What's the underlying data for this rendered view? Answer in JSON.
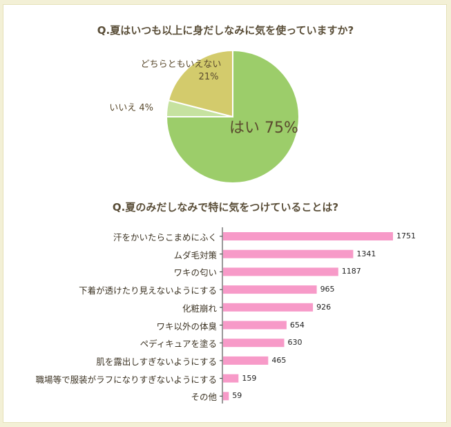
{
  "chart_data": [
    {
      "type": "pie",
      "title": "Q.夏はいつも以上に身だしなみに気を使っていますか?",
      "slices": [
        {
          "label": "はい",
          "pct_text": "75%",
          "value": 75,
          "color": "#9ccd6a"
        },
        {
          "label": "いいえ",
          "pct_text": "4%",
          "value": 4,
          "color": "#c6e2a0"
        },
        {
          "label": "どちらともいえない",
          "pct_text": "21%",
          "value": 21,
          "color": "#d3cb6c"
        }
      ]
    },
    {
      "type": "bar",
      "orientation": "horizontal",
      "title": "Q.夏のみだしなみで特に気をつけていることは?",
      "bar_color": "#f79ac8",
      "categories": [
        "汗をかいたらこまめにふく",
        "ムダ毛対策",
        "ワキの匂い",
        "下着が透けたり見えないようにする",
        "化粧崩れ",
        "ワキ以外の体臭",
        "ペディキュアを塗る",
        "肌を露出しすぎないようにする",
        "職場等で服装がラフになりすぎないようにする",
        "その他"
      ],
      "values": [
        1751,
        1341,
        1187,
        965,
        926,
        654,
        630,
        465,
        159,
        59
      ]
    }
  ]
}
